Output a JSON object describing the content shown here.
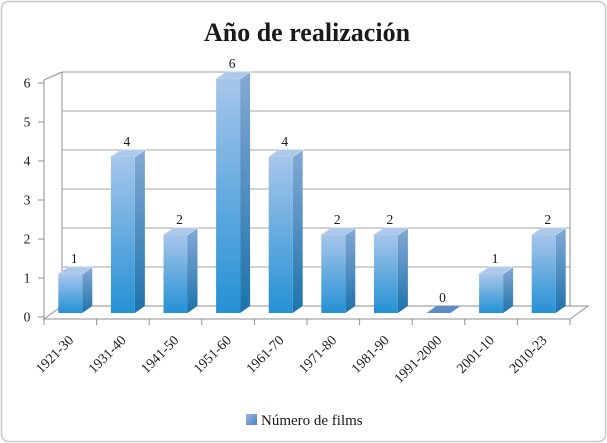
{
  "figure": {
    "background": "#FFFFFF",
    "border_color": "#C9C9C9"
  },
  "chart_data": {
    "type": "bar",
    "style": "3d-column",
    "title": "Año de realización",
    "categories": [
      "1921-30",
      "1931-40",
      "1941-50",
      "1951-60",
      "1961-70",
      "1971-80",
      "1981-90",
      "1991-2000",
      "2001-10",
      "2010-23"
    ],
    "series": [
      {
        "name": "Número de films",
        "values": [
          1,
          4,
          2,
          6,
          4,
          2,
          2,
          0,
          1,
          2
        ]
      }
    ],
    "xlabel": "",
    "ylabel": "",
    "ylim": [
      0,
      6
    ],
    "yticks": [
      0,
      1,
      2,
      3,
      4,
      5,
      6
    ],
    "grid": true,
    "data_labels": true,
    "legend_position": "bottom",
    "x_label_rotation_deg": -45,
    "colors": {
      "bar_front_top": "#A6C6EA",
      "bar_front_bottom": "#2491D4",
      "bar_side_top": "#84A9D5",
      "bar_side_bottom": "#1C73AC",
      "bar_top_face": "#ACC8EB",
      "bar_top_face_edge": "#C3D7F0",
      "zero_marker": "#5D8CC9",
      "legend_swatch_light": "#97B7E5",
      "legend_swatch_dark": "#4C7DC2",
      "gridline": "#A6A6A6",
      "axis": "#8F8F8F",
      "text": "#1A1A1A"
    }
  }
}
